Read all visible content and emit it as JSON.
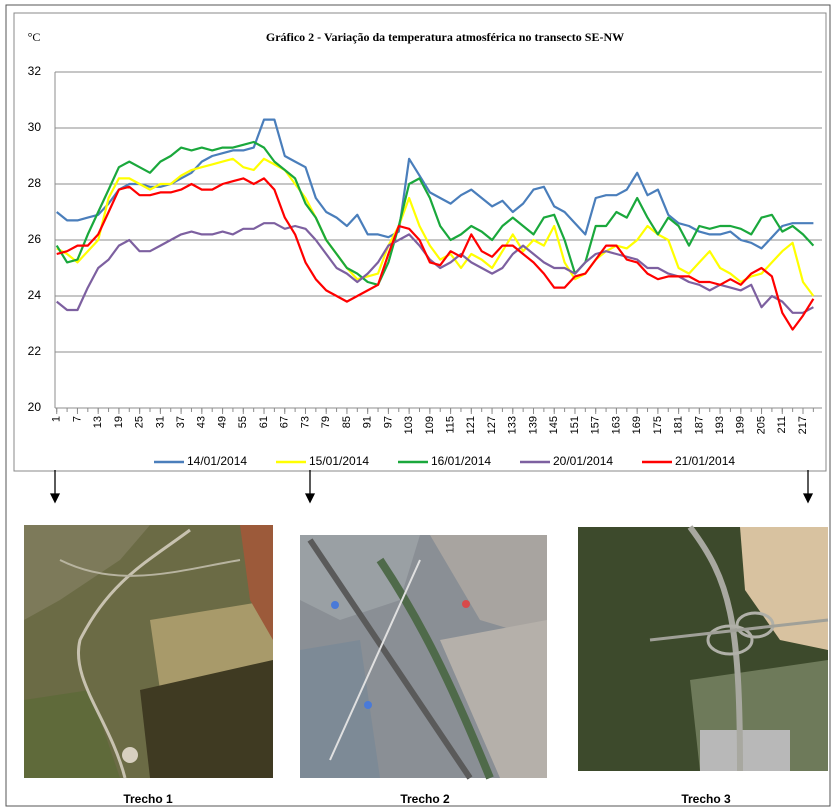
{
  "chart_data": {
    "type": "line",
    "title": "Gráfico 2 - Variação da temperatura atmosférica no transecto SE-NW",
    "y_label": "°C",
    "x": [
      1,
      4,
      7,
      10,
      13,
      16,
      19,
      22,
      25,
      28,
      31,
      34,
      37,
      40,
      43,
      46,
      49,
      52,
      55,
      58,
      61,
      64,
      67,
      70,
      73,
      76,
      79,
      82,
      85,
      88,
      91,
      94,
      97,
      100,
      103,
      106,
      109,
      112,
      115,
      118,
      121,
      124,
      127,
      130,
      133,
      136,
      139,
      142,
      145,
      148,
      151,
      154,
      157,
      160,
      163,
      166,
      169,
      172,
      175,
      178,
      181,
      184,
      187,
      190,
      193,
      196,
      199,
      202,
      205,
      208,
      211,
      214,
      217,
      220
    ],
    "xlim": [
      0.5,
      222.5
    ],
    "xticks": [
      1,
      7,
      13,
      19,
      25,
      31,
      37,
      43,
      49,
      55,
      61,
      67,
      73,
      79,
      85,
      91,
      97,
      103,
      109,
      115,
      121,
      127,
      133,
      139,
      145,
      151,
      157,
      163,
      169,
      175,
      181,
      187,
      193,
      199,
      205,
      211,
      217
    ],
    "ylim": [
      20,
      32
    ],
    "yticks": [
      20,
      22,
      24,
      26,
      28,
      30,
      32
    ],
    "grid": true,
    "legend": "bottom",
    "series": [
      {
        "name": "14/01/2014",
        "color": "#4a7ebb",
        "values": [
          27.0,
          26.7,
          26.7,
          26.8,
          26.9,
          27.3,
          27.8,
          28.0,
          28.0,
          27.9,
          27.9,
          28.0,
          28.2,
          28.4,
          28.8,
          29.0,
          29.1,
          29.2,
          29.2,
          29.3,
          30.3,
          30.3,
          29.0,
          28.8,
          28.6,
          27.5,
          27.0,
          26.8,
          26.5,
          26.9,
          26.2,
          26.2,
          26.1,
          26.3,
          28.9,
          28.3,
          27.7,
          27.5,
          27.3,
          27.6,
          27.8,
          27.5,
          27.2,
          27.4,
          27.0,
          27.3,
          27.8,
          27.9,
          27.2,
          27.0,
          26.6,
          26.2,
          27.5,
          27.6,
          27.6,
          27.8,
          28.4,
          27.6,
          27.8,
          26.9,
          26.6,
          26.5,
          26.3,
          26.2,
          26.2,
          26.3,
          26.0,
          25.9,
          25.7,
          26.1,
          26.5,
          26.6,
          26.6,
          26.6
        ]
      },
      {
        "name": "15/01/2014",
        "color": "#ffff00",
        "values": [
          25.7,
          25.5,
          25.2,
          25.6,
          26.0,
          27.5,
          28.2,
          28.2,
          28.0,
          27.8,
          28.0,
          28.0,
          28.3,
          28.5,
          28.6,
          28.7,
          28.8,
          28.9,
          28.6,
          28.5,
          28.9,
          28.7,
          28.5,
          28.0,
          27.5,
          26.8,
          26.0,
          25.5,
          25.0,
          24.6,
          24.7,
          24.8,
          25.8,
          26.5,
          27.5,
          26.5,
          25.8,
          25.3,
          25.5,
          25.0,
          25.5,
          25.3,
          25.0,
          25.6,
          26.2,
          25.6,
          26.0,
          25.8,
          26.5,
          25.2,
          24.6,
          24.8,
          25.3,
          25.6,
          25.8,
          25.7,
          26.0,
          26.5,
          26.2,
          26.0,
          25.0,
          24.8,
          25.2,
          25.6,
          25.0,
          24.8,
          24.5,
          24.7,
          24.8,
          25.2,
          25.6,
          25.9,
          24.5,
          24.0
        ]
      },
      {
        "name": "16/01/2014",
        "color": "#1aa83c",
        "values": [
          25.8,
          25.2,
          25.3,
          26.2,
          27.0,
          27.8,
          28.6,
          28.8,
          28.6,
          28.4,
          28.8,
          29.0,
          29.3,
          29.2,
          29.3,
          29.2,
          29.3,
          29.3,
          29.4,
          29.5,
          29.3,
          28.8,
          28.5,
          28.2,
          27.3,
          26.8,
          26.0,
          25.5,
          25.0,
          24.8,
          24.5,
          24.4,
          25.2,
          26.5,
          28.0,
          28.2,
          27.5,
          26.5,
          26.0,
          26.2,
          26.5,
          26.3,
          26.0,
          26.5,
          26.8,
          26.5,
          26.2,
          26.8,
          26.9,
          26.0,
          24.8,
          25.2,
          26.5,
          26.5,
          27.0,
          26.8,
          27.5,
          26.8,
          26.2,
          26.8,
          26.5,
          25.8,
          26.5,
          26.4,
          26.5,
          26.5,
          26.4,
          26.2,
          26.8,
          26.9,
          26.3,
          26.5,
          26.2,
          25.8
        ]
      },
      {
        "name": "20/01/2014",
        "color": "#7d60a0",
        "values": [
          23.8,
          23.5,
          23.5,
          24.3,
          25.0,
          25.3,
          25.8,
          26.0,
          25.6,
          25.6,
          25.8,
          26.0,
          26.2,
          26.3,
          26.2,
          26.2,
          26.3,
          26.2,
          26.4,
          26.4,
          26.6,
          26.6,
          26.4,
          26.5,
          26.4,
          26.0,
          25.5,
          25.0,
          24.8,
          24.5,
          24.8,
          25.2,
          25.8,
          26.0,
          26.2,
          25.8,
          25.3,
          25.0,
          25.2,
          25.5,
          25.2,
          25.0,
          24.8,
          25.0,
          25.5,
          25.8,
          25.5,
          25.2,
          25.0,
          25.0,
          24.8,
          25.2,
          25.5,
          25.6,
          25.5,
          25.4,
          25.3,
          25.0,
          25.0,
          24.8,
          24.7,
          24.5,
          24.4,
          24.2,
          24.4,
          24.3,
          24.2,
          24.4,
          23.6,
          24.0,
          23.8,
          23.4,
          23.4,
          23.6
        ]
      },
      {
        "name": "21/01/2014",
        "color": "#ff0000",
        "values": [
          25.5,
          25.6,
          25.8,
          25.8,
          26.2,
          27.0,
          27.8,
          27.9,
          27.6,
          27.6,
          27.7,
          27.7,
          27.8,
          28.0,
          27.8,
          27.8,
          28.0,
          28.1,
          28.2,
          28.0,
          28.2,
          27.8,
          26.8,
          26.2,
          25.2,
          24.6,
          24.2,
          24.0,
          23.8,
          24.0,
          24.2,
          24.4,
          25.5,
          26.5,
          26.4,
          26.0,
          25.2,
          25.1,
          25.6,
          25.4,
          26.2,
          25.6,
          25.4,
          25.8,
          25.8,
          25.5,
          25.2,
          24.8,
          24.3,
          24.3,
          24.7,
          24.8,
          25.3,
          25.8,
          25.8,
          25.3,
          25.2,
          24.8,
          24.6,
          24.7,
          24.7,
          24.7,
          24.5,
          24.5,
          24.4,
          24.6,
          24.4,
          24.8,
          25.0,
          24.7,
          23.4,
          22.8,
          23.3,
          23.9
        ]
      }
    ]
  },
  "panels": [
    {
      "caption": "Trecho 1"
    },
    {
      "caption": "Trecho 2"
    },
    {
      "caption": "Trecho 3"
    }
  ]
}
